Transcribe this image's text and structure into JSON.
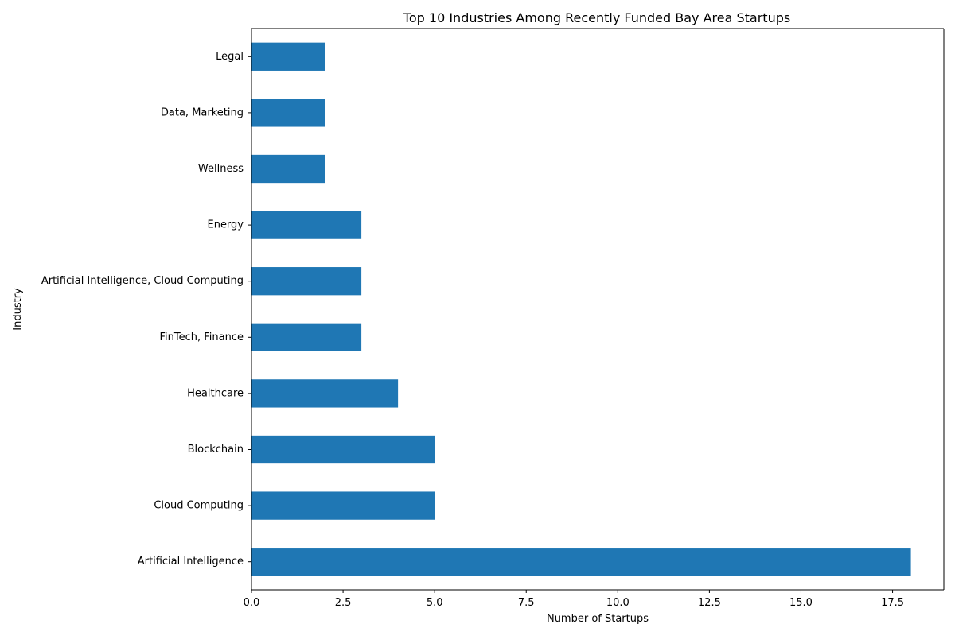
{
  "chart_data": {
    "type": "bar",
    "orientation": "horizontal",
    "title": "Top 10 Industries Among Recently Funded Bay Area Startups",
    "xlabel": "Number of Startups",
    "ylabel": "Industry",
    "categories": [
      "Artificial Intelligence",
      "Cloud Computing",
      "Blockchain",
      "Healthcare",
      "FinTech, Finance",
      "Artificial Intelligence, Cloud Computing",
      "Energy",
      "Wellness",
      "Data, Marketing",
      "Legal"
    ],
    "values": [
      18,
      5,
      5,
      4,
      3,
      3,
      3,
      2,
      2,
      2
    ],
    "xlim": [
      0,
      18.9
    ],
    "xticks": [
      0,
      2.5,
      5,
      7.5,
      10,
      12.5,
      15,
      17.5
    ],
    "xtick_labels": [
      "0.0",
      "2.5",
      "5.0",
      "7.5",
      "10.0",
      "12.5",
      "15.0",
      "17.5"
    ],
    "bar_color": "#1f77b4",
    "grid": false,
    "legend": "none"
  }
}
